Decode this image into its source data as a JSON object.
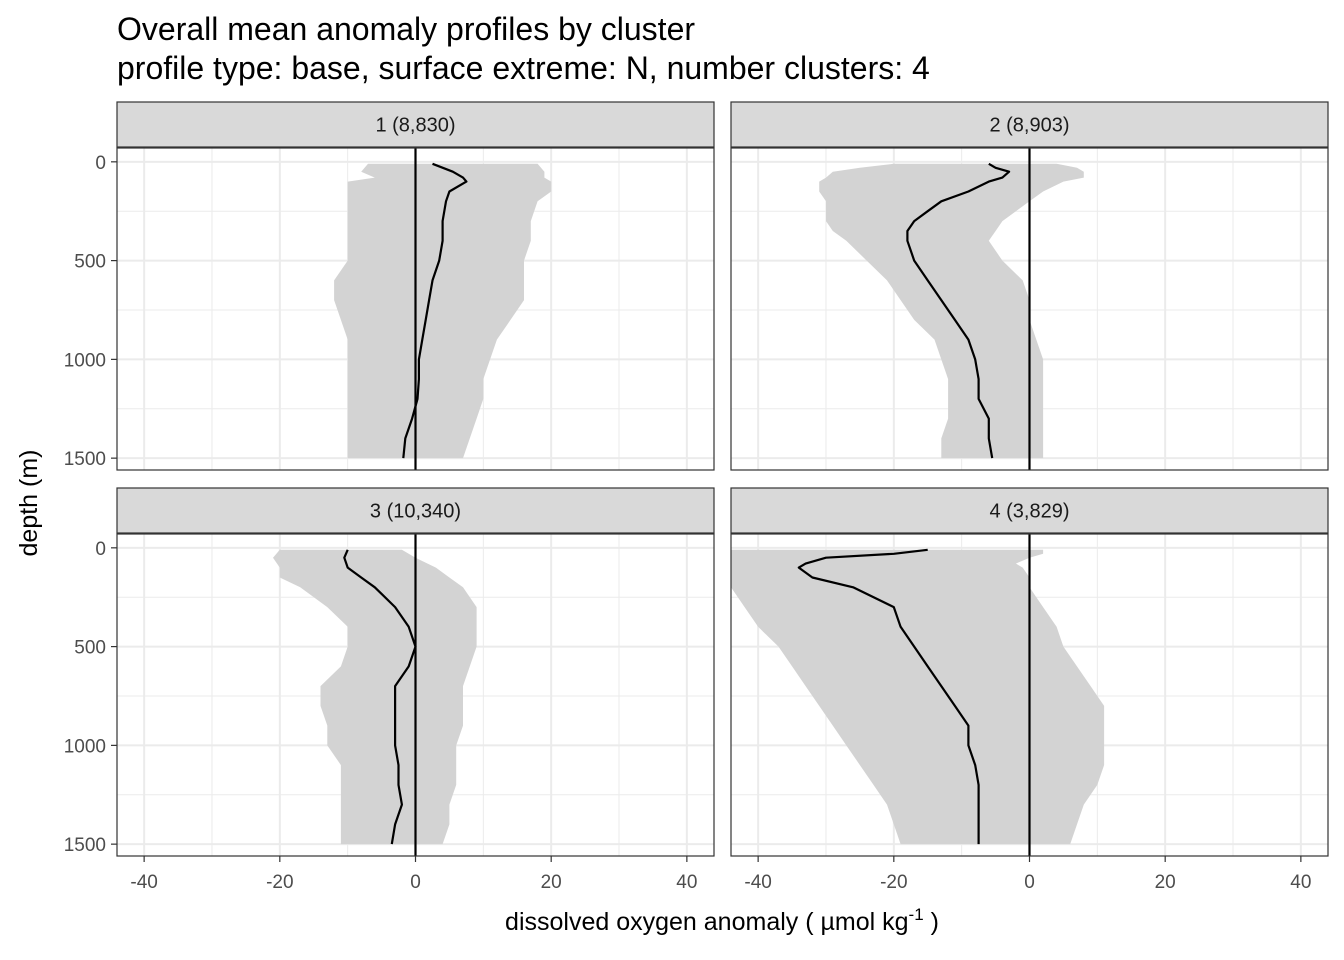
{
  "title": "Overall mean anomaly profiles by cluster",
  "subtitle": "profile type: base, surface extreme: N, number clusters: 4",
  "chart_data": {
    "type": "line",
    "xlabel": "dissolved oxygen anomaly ( µmol kg",
    "xlabel_sup": "-1",
    "xlabel_end": " )",
    "ylabel": "depth (m)",
    "xlim": [
      -44,
      44
    ],
    "ylim": [
      1560,
      -70
    ],
    "xticks": [
      -40,
      -20,
      0,
      20,
      40
    ],
    "yticks": [
      0,
      500,
      1000,
      1500
    ],
    "xtick_labels": [
      "-40",
      "-20",
      "0",
      "20",
      "40"
    ],
    "ytick_labels": [
      "0",
      "500",
      "1000",
      "1500"
    ],
    "colors": {
      "ribbon": "#d3d3d3",
      "line": "#000000",
      "strip": "#d9d9d9",
      "grid": "#ebebeb"
    },
    "panels": [
      {
        "label": "1 (8,830)",
        "depth": [
          10,
          50,
          80,
          100,
          150,
          200,
          300,
          400,
          500,
          600,
          700,
          800,
          900,
          1000,
          1100,
          1200,
          1300,
          1400,
          1500
        ],
        "mean": [
          2.5,
          5.5,
          7.0,
          7.5,
          5.0,
          4.5,
          4.0,
          4.0,
          3.5,
          2.5,
          2.0,
          1.5,
          1.0,
          0.5,
          0.5,
          0.3,
          -0.5,
          -1.5,
          -1.8
        ],
        "lower": [
          -7,
          -8,
          -6,
          -10,
          -10,
          -10,
          -10,
          -10,
          -10,
          -12,
          -12,
          -11,
          -10,
          -10,
          -10,
          -10,
          -10,
          -10,
          -10
        ],
        "upper": [
          18,
          19,
          19,
          20,
          20,
          18,
          17,
          17,
          16,
          16,
          16,
          14,
          12,
          11,
          10,
          10,
          9,
          8,
          7
        ]
      },
      {
        "label": "2 (8,903)",
        "depth": [
          10,
          30,
          50,
          80,
          100,
          150,
          200,
          250,
          300,
          350,
          400,
          500,
          600,
          700,
          800,
          900,
          1000,
          1100,
          1200,
          1300,
          1400,
          1500
        ],
        "mean": [
          -6,
          -5,
          -3,
          -4,
          -6,
          -9,
          -13,
          -15,
          -17,
          -18,
          -18,
          -17,
          -15,
          -13,
          -11,
          -9,
          -8,
          -7.5,
          -7.5,
          -6,
          -6,
          -5.5
        ],
        "lower": [
          -20,
          -25,
          -29,
          -30,
          -31,
          -31,
          -30,
          -30,
          -30,
          -29,
          -27,
          -24,
          -21,
          -19,
          -17,
          -14,
          -13,
          -12,
          -12,
          -12,
          -13,
          -13
        ],
        "upper": [
          4,
          7,
          8,
          8,
          5,
          2,
          0,
          -2,
          -4,
          -5,
          -6,
          -4,
          -1,
          0,
          0,
          1,
          2,
          2,
          2,
          2,
          2,
          2
        ]
      },
      {
        "label": "3 (10,340)",
        "depth": [
          10,
          50,
          100,
          150,
          200,
          300,
          400,
          500,
          600,
          700,
          800,
          900,
          1000,
          1100,
          1200,
          1300,
          1400,
          1500
        ],
        "mean": [
          -10,
          -10.5,
          -10,
          -8,
          -6,
          -3,
          -1,
          0,
          -1,
          -3,
          -3,
          -3,
          -3,
          -2.5,
          -2.5,
          -2,
          -3,
          -3.5
        ],
        "lower": [
          -20,
          -21,
          -20,
          -20,
          -17,
          -13,
          -10,
          -10,
          -11,
          -14,
          -14,
          -13,
          -13,
          -11,
          -11,
          -11,
          -11,
          -11
        ],
        "upper": [
          -2,
          0,
          3,
          5,
          7,
          9,
          9,
          9,
          8,
          7,
          7,
          7,
          6,
          6,
          6,
          5,
          5,
          4
        ]
      },
      {
        "label": "4 (3,829)",
        "depth": [
          10,
          30,
          50,
          80,
          100,
          150,
          200,
          300,
          400,
          500,
          600,
          700,
          800,
          900,
          1000,
          1100,
          1200,
          1300,
          1400,
          1500
        ],
        "mean": [
          -15,
          -20,
          -30,
          -33,
          -34,
          -32,
          -26,
          -20,
          -19,
          -17,
          -15,
          -13,
          -11,
          -9,
          -9,
          -8,
          -7.5,
          -7.5,
          -7.5,
          -7.5
        ],
        "lower": [
          -44,
          -44,
          -44,
          -44,
          -44,
          -44,
          -44,
          -42,
          -40,
          -37,
          -35,
          -33,
          -31,
          -29,
          -27,
          -25,
          -23,
          -21,
          -20,
          -19
        ],
        "upper": [
          2,
          2,
          0,
          -2,
          -1,
          0,
          0,
          2,
          4,
          5,
          7,
          9,
          11,
          11,
          11,
          11,
          10,
          8,
          7,
          6
        ]
      }
    ]
  }
}
